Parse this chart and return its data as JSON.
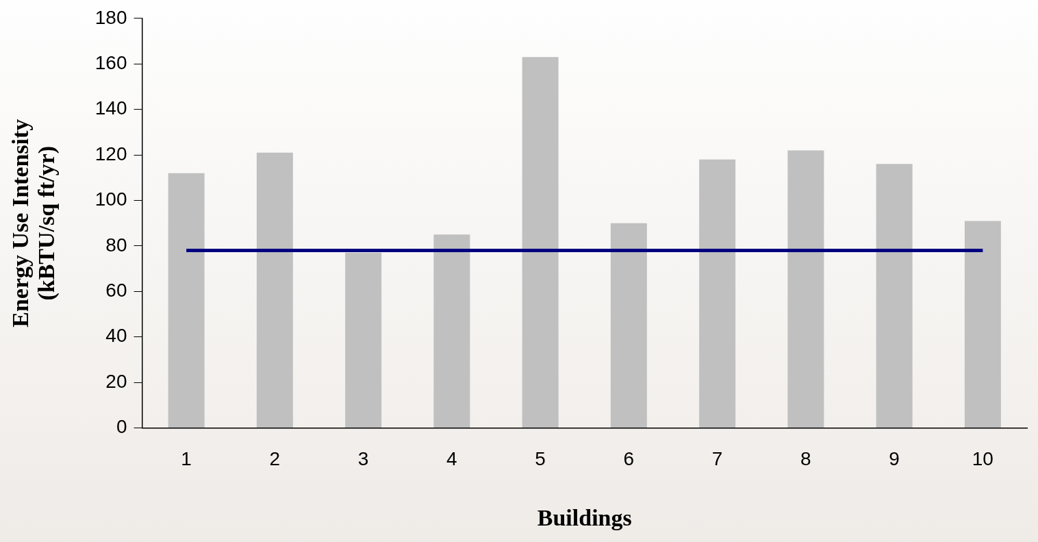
{
  "chart_data": {
    "type": "bar",
    "xlabel": "Buildings",
    "ylabel": "Energy Use Intensity\n(kBTU/sq ft/yr)",
    "categories": [
      "1",
      "2",
      "3",
      "4",
      "5",
      "6",
      "7",
      "8",
      "9",
      "10"
    ],
    "series": [
      {
        "color": "#c0c0c0",
        "values": [
          112,
          121,
          77,
          85,
          163,
          90,
          118,
          122,
          116,
          91
        ]
      },
      {
        "type": "line",
        "color": "#000080",
        "values": [
          78,
          78,
          78,
          78,
          78,
          78,
          78,
          78,
          78,
          78
        ]
      }
    ],
    "ylim": [
      0,
      180
    ],
    "yticks": [
      0,
      20,
      40,
      60,
      80,
      100,
      120,
      140,
      160,
      180
    ],
    "grid": false,
    "legend": false,
    "marker": "none"
  }
}
